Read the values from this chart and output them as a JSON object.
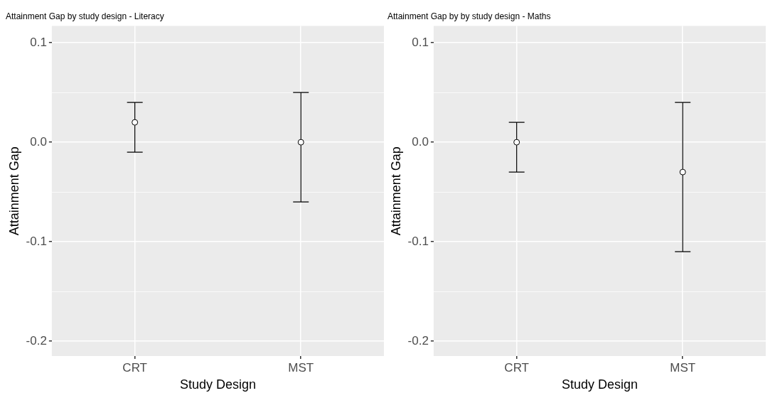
{
  "chart_data": [
    {
      "type": "scatter",
      "title": "Attainment Gap by study design - Literacy",
      "xlabel": "Study Design",
      "ylabel": "Attainment Gap",
      "categories": [
        "CRT",
        "MST"
      ],
      "values": [
        0.02,
        0
      ],
      "errors": [
        [
          -0.01,
          0.04
        ],
        [
          -0.06,
          0.05
        ]
      ],
      "color": "#000000",
      "marker": "circle",
      "ylim": [
        -0.215,
        0.117
      ],
      "yticks": [
        -0.2,
        {
          "value": -0.15,
          "label": null
        },
        -0.1,
        {
          "value": -0.05,
          "label": null
        },
        {
          "value": 0,
          "label": "0.0"
        },
        {
          "value": 0.05,
          "label": null
        },
        0.1
      ],
      "grid": true
    },
    {
      "type": "scatter",
      "title": "Attainment Gap by by study design - Maths",
      "xlabel": "Study Design",
      "ylabel": "Attainment Gap",
      "categories": [
        "CRT",
        "MST"
      ],
      "values": [
        0,
        -0.03
      ],
      "errors": [
        [
          -0.03,
          0.02
        ],
        [
          -0.11,
          0.04
        ]
      ],
      "color": "#000000",
      "marker": "circle",
      "ylim": [
        -0.215,
        0.117
      ],
      "yticks": [
        -0.2,
        {
          "value": -0.15,
          "label": null
        },
        -0.1,
        {
          "value": -0.05,
          "label": null
        },
        {
          "value": 0,
          "label": "0.0"
        },
        {
          "value": 0.05,
          "label": null
        },
        0.1
      ],
      "grid": true
    }
  ]
}
